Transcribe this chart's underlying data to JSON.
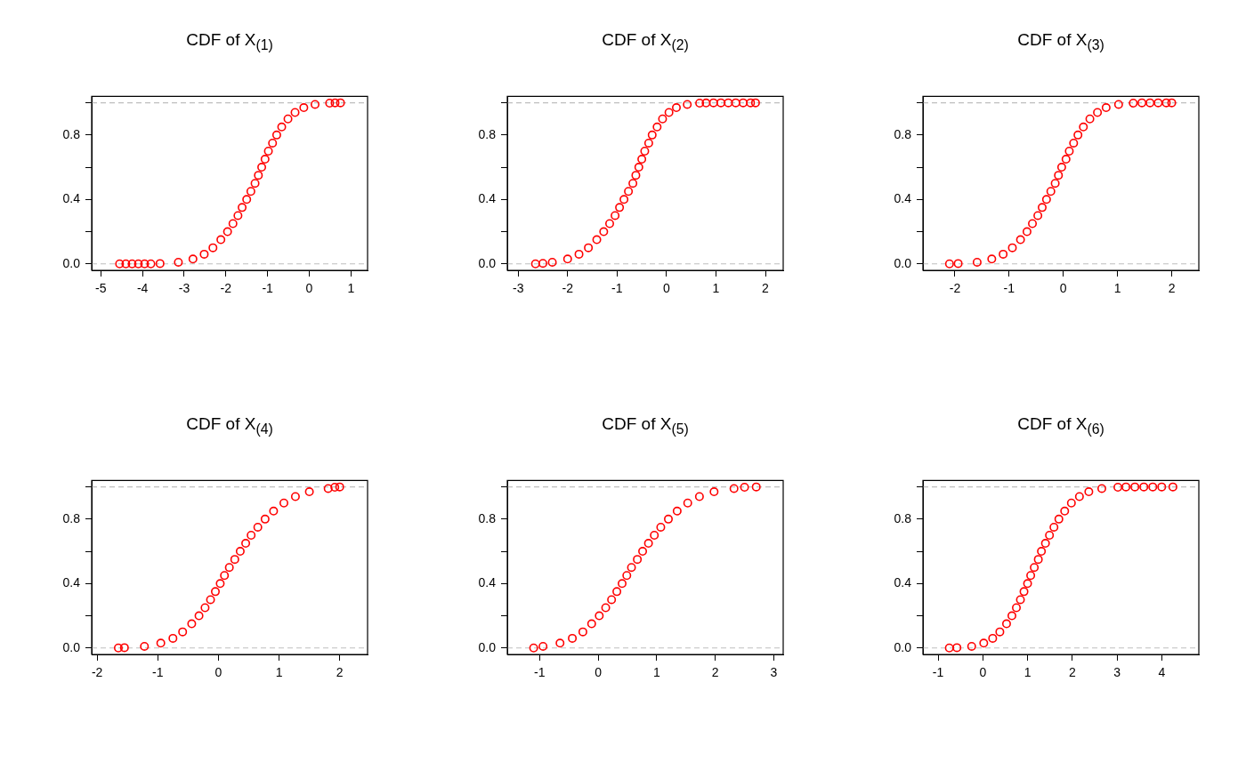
{
  "chart_data": [
    {
      "type": "scatter",
      "title": "CDF of X$_{(1)}$",
      "xlim": [
        -5.22,
        1.4
      ],
      "ylim": [
        -0.04,
        1.04
      ],
      "xticks": [
        -5,
        -4,
        -3,
        -2,
        -1,
        0,
        1
      ],
      "yticks": [
        {
          "value": 0,
          "label": "0.0"
        },
        {
          "value": 0.2,
          "label": null
        },
        {
          "value": 0.4,
          "label": "0.4"
        },
        {
          "value": 0.6,
          "label": null
        },
        {
          "value": 0.8,
          "label": "0.8"
        },
        {
          "value": 1,
          "label": null
        }
      ],
      "marker": "circle",
      "ref_lines": [
        {
          "axis": "y",
          "value": 0,
          "color": "#bebebe",
          "line_style": "dashed"
        },
        {
          "axis": "y",
          "value": 1,
          "color": "#bebebe",
          "line_style": "dashed"
        }
      ],
      "series": [
        {
          "color": "#ff0000",
          "x": [
            -4.55,
            -4.4,
            -4.25,
            -4.1,
            -3.95,
            -3.8,
            -3.58,
            -3.14,
            -2.79,
            -2.52,
            -2.31,
            -2.12,
            -1.96,
            -1.83,
            -1.71,
            -1.61,
            -1.5,
            -1.4,
            -1.3,
            -1.22,
            -1.14,
            -1.06,
            -0.98,
            -0.88,
            -0.78,
            -0.66,
            -0.51,
            -0.34,
            -0.13,
            0.14,
            0.49,
            0.62,
            0.75
          ],
          "values": [
            0,
            0,
            0,
            0,
            0,
            0,
            0.002,
            0.01,
            0.03,
            0.06,
            0.1,
            0.15,
            0.2,
            0.25,
            0.3,
            0.35,
            0.4,
            0.45,
            0.5,
            0.55,
            0.6,
            0.65,
            0.7,
            0.75,
            0.8,
            0.85,
            0.9,
            0.94,
            0.97,
            0.99,
            0.998,
            1,
            1
          ]
        }
      ]
    },
    {
      "type": "scatter",
      "title": "CDF of X$_{(2)}$",
      "xlim": [
        -3.22,
        2.36
      ],
      "ylim": [
        -0.04,
        1.04
      ],
      "xticks": [
        -3,
        -2,
        -1,
        0,
        1,
        2
      ],
      "yticks": [
        {
          "value": 0,
          "label": "0.0"
        },
        {
          "value": 0.2,
          "label": null
        },
        {
          "value": 0.4,
          "label": "0.4"
        },
        {
          "value": 0.6,
          "label": null
        },
        {
          "value": 0.8,
          "label": "0.8"
        },
        {
          "value": 1,
          "label": null
        }
      ],
      "marker": "circle",
      "ref_lines": [
        {
          "axis": "y",
          "value": 0,
          "color": "#bebebe",
          "line_style": "dashed"
        },
        {
          "axis": "y",
          "value": 1,
          "color": "#bebebe",
          "line_style": "dashed"
        }
      ],
      "series": [
        {
          "color": "#ff0000",
          "x": [
            -2.65,
            -2.5,
            -2.31,
            -2,
            -1.77,
            -1.58,
            -1.41,
            -1.27,
            -1.15,
            -1.04,
            -0.95,
            -0.86,
            -0.77,
            -0.68,
            -0.62,
            -0.56,
            -0.5,
            -0.44,
            -0.36,
            -0.29,
            -0.19,
            -0.08,
            0.05,
            0.2,
            0.42,
            0.67,
            0.8,
            0.95,
            1.1,
            1.25,
            1.4,
            1.55,
            1.7,
            1.8
          ],
          "values": [
            0,
            0.003,
            0.01,
            0.03,
            0.06,
            0.1,
            0.15,
            0.2,
            0.25,
            0.3,
            0.35,
            0.4,
            0.45,
            0.5,
            0.55,
            0.6,
            0.65,
            0.7,
            0.75,
            0.8,
            0.85,
            0.9,
            0.94,
            0.97,
            0.99,
            0.998,
            0.999,
            1,
            1,
            1,
            1,
            1,
            1,
            1
          ]
        }
      ]
    },
    {
      "type": "scatter",
      "title": "CDF of X$_{(3)}$",
      "xlim": [
        -2.59,
        2.5
      ],
      "ylim": [
        -0.04,
        1.04
      ],
      "xticks": [
        -2,
        -1,
        0,
        1,
        2
      ],
      "yticks": [
        {
          "value": 0,
          "label": "0.0"
        },
        {
          "value": 0.2,
          "label": null
        },
        {
          "value": 0.4,
          "label": "0.4"
        },
        {
          "value": 0.6,
          "label": null
        },
        {
          "value": 0.8,
          "label": "0.8"
        },
        {
          "value": 1,
          "label": null
        }
      ],
      "marker": "circle",
      "ref_lines": [
        {
          "axis": "y",
          "value": 0,
          "color": "#bebebe",
          "line_style": "dashed"
        },
        {
          "axis": "y",
          "value": 1,
          "color": "#bebebe",
          "line_style": "dashed"
        }
      ],
      "series": [
        {
          "color": "#ff0000",
          "x": [
            -2.1,
            -1.94,
            -1.59,
            -1.32,
            -1.11,
            -0.94,
            -0.79,
            -0.67,
            -0.57,
            -0.47,
            -0.39,
            -0.31,
            -0.23,
            -0.15,
            -0.09,
            -0.03,
            0.05,
            0.11,
            0.19,
            0.27,
            0.37,
            0.49,
            0.63,
            0.79,
            1.02,
            1.29,
            1.45,
            1.6,
            1.75,
            1.9,
            2
          ],
          "values": [
            0,
            0.002,
            0.01,
            0.03,
            0.06,
            0.1,
            0.15,
            0.2,
            0.25,
            0.3,
            0.35,
            0.4,
            0.45,
            0.5,
            0.55,
            0.6,
            0.65,
            0.7,
            0.75,
            0.8,
            0.85,
            0.9,
            0.94,
            0.97,
            0.99,
            0.998,
            1,
            1,
            1,
            1,
            1
          ]
        }
      ]
    },
    {
      "type": "scatter",
      "title": "CDF of X$_{(4)}$",
      "xlim": [
        -2.09,
        2.46
      ],
      "ylim": [
        -0.04,
        1.04
      ],
      "xticks": [
        -2,
        -1,
        0,
        1,
        2
      ],
      "yticks": [
        {
          "value": 0,
          "label": "0.0"
        },
        {
          "value": 0.2,
          "label": null
        },
        {
          "value": 0.4,
          "label": "0.4"
        },
        {
          "value": 0.6,
          "label": null
        },
        {
          "value": 0.8,
          "label": "0.8"
        },
        {
          "value": 1,
          "label": null
        }
      ],
      "marker": "circle",
      "ref_lines": [
        {
          "axis": "y",
          "value": 0,
          "color": "#bebebe",
          "line_style": "dashed"
        },
        {
          "axis": "y",
          "value": 1,
          "color": "#bebebe",
          "line_style": "dashed"
        }
      ],
      "series": [
        {
          "color": "#ff0000",
          "x": [
            -1.65,
            -1.55,
            -1.22,
            -0.95,
            -0.75,
            -0.59,
            -0.44,
            -0.32,
            -0.22,
            -0.13,
            -0.05,
            0.03,
            0.1,
            0.18,
            0.27,
            0.36,
            0.45,
            0.54,
            0.65,
            0.77,
            0.91,
            1.08,
            1.27,
            1.5,
            1.81,
            1.92,
            2
          ],
          "values": [
            0,
            0.002,
            0.01,
            0.03,
            0.06,
            0.1,
            0.15,
            0.2,
            0.25,
            0.3,
            0.35,
            0.4,
            0.45,
            0.5,
            0.55,
            0.6,
            0.65,
            0.7,
            0.75,
            0.8,
            0.85,
            0.9,
            0.94,
            0.97,
            0.99,
            0.998,
            1
          ]
        }
      ]
    },
    {
      "type": "scatter",
      "title": "CDF of X$_{(5)}$",
      "xlim": [
        -1.55,
        3.16
      ],
      "ylim": [
        -0.04,
        1.04
      ],
      "xticks": [
        -1,
        0,
        1,
        2,
        3
      ],
      "yticks": [
        {
          "value": 0,
          "label": "0.0"
        },
        {
          "value": 0.2,
          "label": null
        },
        {
          "value": 0.4,
          "label": "0.4"
        },
        {
          "value": 0.6,
          "label": null
        },
        {
          "value": 0.8,
          "label": "0.8"
        },
        {
          "value": 1,
          "label": null
        }
      ],
      "marker": "circle",
      "ref_lines": [
        {
          "axis": "y",
          "value": 0,
          "color": "#bebebe",
          "line_style": "dashed"
        },
        {
          "axis": "y",
          "value": 1,
          "color": "#bebebe",
          "line_style": "dashed"
        }
      ],
      "series": [
        {
          "color": "#ff0000",
          "x": [
            -1.1,
            -0.94,
            -0.65,
            -0.44,
            -0.26,
            -0.11,
            0.02,
            0.13,
            0.23,
            0.32,
            0.41,
            0.49,
            0.57,
            0.67,
            0.76,
            0.86,
            0.96,
            1.07,
            1.2,
            1.35,
            1.53,
            1.73,
            1.98,
            2.32,
            2.5,
            2.7
          ],
          "values": [
            0,
            0.01,
            0.03,
            0.06,
            0.1,
            0.15,
            0.2,
            0.25,
            0.3,
            0.35,
            0.4,
            0.45,
            0.5,
            0.55,
            0.6,
            0.65,
            0.7,
            0.75,
            0.8,
            0.85,
            0.9,
            0.94,
            0.97,
            0.99,
            0.998,
            1
          ]
        }
      ]
    },
    {
      "type": "scatter",
      "title": "CDF of X$_{(6)}$",
      "xlim": [
        -1.34,
        4.83
      ],
      "ylim": [
        -0.04,
        1.04
      ],
      "xticks": [
        -1,
        0,
        1,
        2,
        3,
        4
      ],
      "yticks": [
        {
          "value": 0,
          "label": "0.0"
        },
        {
          "value": 0.2,
          "label": null
        },
        {
          "value": 0.4,
          "label": "0.4"
        },
        {
          "value": 0.6,
          "label": null
        },
        {
          "value": 0.8,
          "label": "0.8"
        },
        {
          "value": 1,
          "label": null
        }
      ],
      "marker": "circle",
      "ref_lines": [
        {
          "axis": "y",
          "value": 0,
          "color": "#bebebe",
          "line_style": "dashed"
        },
        {
          "axis": "y",
          "value": 1,
          "color": "#bebebe",
          "line_style": "dashed"
        }
      ],
      "series": [
        {
          "color": "#ff0000",
          "x": [
            -0.75,
            -0.58,
            -0.25,
            0.02,
            0.22,
            0.38,
            0.53,
            0.65,
            0.75,
            0.84,
            0.92,
            1,
            1.07,
            1.15,
            1.24,
            1.31,
            1.4,
            1.49,
            1.59,
            1.7,
            1.83,
            1.98,
            2.16,
            2.37,
            2.66,
            3.02,
            3.2,
            3.4,
            3.6,
            3.8,
            4,
            4.25
          ],
          "values": [
            0,
            0.002,
            0.01,
            0.03,
            0.06,
            0.1,
            0.15,
            0.2,
            0.25,
            0.3,
            0.35,
            0.4,
            0.45,
            0.5,
            0.55,
            0.6,
            0.65,
            0.7,
            0.75,
            0.8,
            0.85,
            0.9,
            0.94,
            0.97,
            0.99,
            0.998,
            1,
            1,
            1,
            1,
            1,
            1
          ]
        }
      ]
    }
  ]
}
